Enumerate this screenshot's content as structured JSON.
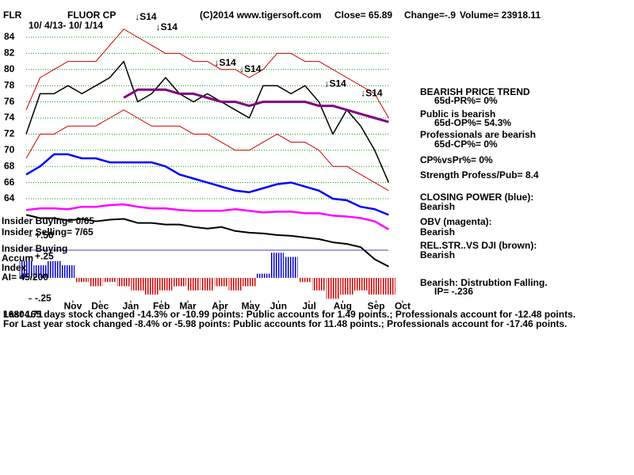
{
  "chart_data": {
    "type": "line",
    "ticker": "FLR",
    "title": "FLUOR CP",
    "subtitle": "10/ 4/13- 10/ 1/14",
    "xlim": [
      0,
      27
    ],
    "xticks": [
      {
        "value": 3.35,
        "label": "Nov"
      },
      {
        "value": 5.3,
        "label": "Dec"
      },
      {
        "value": 7.5,
        "label": "Jan"
      },
      {
        "value": 9.7,
        "label": "Feb"
      },
      {
        "value": 11.6,
        "label": "Mar"
      },
      {
        "value": 13.9,
        "label": "Apr"
      },
      {
        "value": 16.1,
        "label": "May"
      },
      {
        "value": 18.1,
        "label": "Jun"
      },
      {
        "value": 20.3,
        "label": "Jul"
      },
      {
        "value": 22.7,
        "label": "Aug"
      },
      {
        "value": 25.1,
        "label": "Sep"
      },
      {
        "value": 27.0,
        "label": "Oct"
      }
    ],
    "ylim": [
      51.5,
      87
    ],
    "yticks": [
      64,
      66,
      68,
      70,
      72,
      74,
      76,
      78,
      80,
      82,
      84
    ],
    "y2lim": [
      -0.26,
      3.16
    ],
    "y2ticks": [
      {
        "value": 0.5,
        "label": "+.50"
      },
      {
        "value": 0.25,
        "label": "+.25"
      },
      {
        "value": -0.25,
        "label": "-.25"
      }
    ],
    "grid": true,
    "grid_color": "#00a000",
    "series": [
      {
        "color": "#000000",
        "width": 1.5,
        "values": [
          72,
          77,
          77,
          78,
          77,
          78,
          79,
          81,
          76,
          77,
          79,
          77,
          76,
          77,
          76,
          75,
          74,
          78,
          78,
          77,
          78,
          76,
          72,
          75,
          73,
          70,
          66
        ]
      },
      {
        "color": "#d00000",
        "width": 1,
        "values": [
          75,
          79,
          80,
          81,
          81,
          81,
          83,
          85,
          84,
          83,
          82,
          82,
          81,
          81,
          80,
          80,
          79,
          80,
          82,
          82,
          81,
          81,
          80,
          79,
          78,
          77,
          74
        ]
      },
      {
        "color": "#d00000",
        "width": 1,
        "values": [
          69,
          72,
          72,
          73,
          73,
          73,
          74,
          75,
          74,
          73,
          73,
          73,
          72,
          72,
          71,
          70,
          70,
          71,
          72,
          71,
          71,
          70,
          68,
          68,
          67,
          66,
          65
        ]
      },
      {
        "color": "#800080",
        "width": 3,
        "values": [
          null,
          null,
          null,
          null,
          null,
          null,
          null,
          76.5,
          77.5,
          77.5,
          77.5,
          77,
          77,
          76.5,
          76,
          76,
          75.5,
          76,
          76,
          76,
          76,
          75.5,
          75.5,
          75,
          74.5,
          74,
          73.5
        ]
      },
      {
        "color": "#0000ff",
        "width": 2.5,
        "values": [
          67,
          68,
          69.5,
          69.5,
          69,
          69,
          68.5,
          68.5,
          68.5,
          68.5,
          68,
          67,
          66.5,
          66,
          65.5,
          65,
          64.8,
          65.3,
          65.8,
          66,
          65.5,
          65,
          64,
          63.8,
          63,
          62.7,
          62
        ]
      },
      {
        "color": "#ff00ff",
        "width": 2.5,
        "values": [
          62.6,
          62.8,
          62.8,
          62.7,
          63,
          63,
          63.2,
          63.3,
          63,
          62.8,
          62.8,
          62.6,
          62.5,
          62.5,
          62.5,
          62.7,
          62.5,
          62.3,
          62.4,
          62.4,
          62.2,
          62.2,
          61.9,
          61.8,
          61.6,
          61.2,
          60.2
        ]
      },
      {
        "color": "#000000",
        "width": 2,
        "values": [
          62,
          61.6,
          61.6,
          61.3,
          61.5,
          61.2,
          61.4,
          61.5,
          61,
          61,
          60.8,
          60.8,
          60.5,
          60.3,
          60.5,
          60,
          59.8,
          59.7,
          59.5,
          59.4,
          59.2,
          59,
          58.6,
          58.4,
          58,
          56.5,
          55.6
        ]
      },
      {
        "type": "bar",
        "axis": "y2",
        "color": "#0000c0",
        "negative_color": "#d00000",
        "values": [
          0.2,
          0.15,
          0.2,
          0.15,
          -0.05,
          -0.1,
          -0.05,
          -0.1,
          -0.15,
          -0.2,
          -0.15,
          -0.1,
          -0.15,
          -0.15,
          -0.1,
          -0.15,
          -0.1,
          0.05,
          0.3,
          0.25,
          -0.05,
          -0.15,
          -0.25,
          -0.2,
          -0.15,
          -0.2,
          -0.2
        ]
      }
    ],
    "annotations": [
      {
        "label": "↓S14",
        "x": 7.8,
        "y": 86.45
      },
      {
        "label": "↓S14",
        "x": 9.3,
        "y": 85.2
      },
      {
        "label": "↓S14",
        "x": 13.5,
        "y": 80.8
      },
      {
        "label": "↓S14",
        "x": 15.3,
        "y": 80
      },
      {
        "label": "↓S14",
        "x": 21.4,
        "y": 78.2
      },
      {
        "label": "↓S14",
        "x": 24.0,
        "y": 77
      }
    ]
  },
  "header": {
    "copyright": "(C)2014 www.tigersoft.com",
    "close": "Close=  65.89",
    "change": "Change=-.9",
    "volume": "Volume= 23918.11"
  },
  "left_labels": [
    "Insider Buying= 0/65",
    "Insider Selling= 7/65",
    "Insider Buying",
    "Accum",
    "Index",
    "AI= 45/200"
  ],
  "side_panel": [
    "BEARISH PRICE TREND",
    "65d-PR%= 0%",
    "Public is bearish",
    "65d-OP%= 54.3%",
    "Professionals are bearish",
    "65d-CP%= 0%",
    "CP%vsPr%=  0%",
    "Strength Profess/Pub= 8.4",
    "CLOSING POWER (blue):",
    "Bearish",
    "OBV (magenta):",
    "Bearish",
    "REL.STR..VS DJI (brown):",
    "Bearish",
    "Bearish: Distrubtion Falling.",
    "IP= -.236"
  ],
  "footer": {
    "dji": "16804.71",
    "line1": "Last 165 days stock changed -14.3% or -10.99 points:  Public accounts for  1.49 points.;  Professionals account for -12.48 points.",
    "line2": "For Last year stock changed -8.4% or -5.98 points:  Public accounts for  11.48 points.;  Professionals account for -17.46 points."
  }
}
